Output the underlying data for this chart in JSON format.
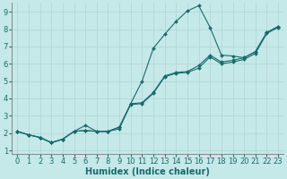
{
  "xlabel": "Humidex (Indice chaleur)",
  "background_color": "#c5e8e8",
  "grid_color": "#afd4d4",
  "line_color": "#1a6b6b",
  "xlim": [
    -0.5,
    23.5
  ],
  "ylim": [
    0.8,
    9.5
  ],
  "xticks": [
    0,
    1,
    2,
    3,
    4,
    5,
    6,
    7,
    8,
    9,
    10,
    11,
    12,
    13,
    14,
    15,
    16,
    17,
    18,
    19,
    20,
    21,
    22,
    23
  ],
  "yticks": [
    1,
    2,
    3,
    4,
    5,
    6,
    7,
    8,
    9
  ],
  "line1_x": [
    0,
    1,
    2,
    3,
    4,
    5,
    6,
    7,
    8,
    9,
    10,
    11,
    12,
    13,
    14,
    15,
    16,
    17,
    18,
    19,
    20,
    21,
    22,
    23
  ],
  "line1_y": [
    2.1,
    1.9,
    1.75,
    1.45,
    1.65,
    2.1,
    2.15,
    2.1,
    2.1,
    2.25,
    3.7,
    3.75,
    4.35,
    5.3,
    5.5,
    5.55,
    5.9,
    6.5,
    6.1,
    6.2,
    6.35,
    6.7,
    7.8,
    8.15
  ],
  "line2_x": [
    0,
    1,
    2,
    3,
    4,
    5,
    6,
    7,
    8,
    9,
    10,
    11,
    12,
    13,
    14,
    15,
    16,
    17,
    18,
    19,
    20,
    21,
    22,
    23
  ],
  "line2_y": [
    2.1,
    1.9,
    1.75,
    1.45,
    1.65,
    2.1,
    2.45,
    2.1,
    2.1,
    2.35,
    3.7,
    5.0,
    6.9,
    7.7,
    8.45,
    9.05,
    9.35,
    8.1,
    6.5,
    6.45,
    6.35,
    6.7,
    7.8,
    8.15
  ],
  "line3_x": [
    0,
    1,
    2,
    3,
    4,
    5,
    6,
    7,
    8,
    9,
    10,
    11,
    12,
    13,
    14,
    15,
    16,
    17,
    18,
    19,
    20,
    21,
    22,
    23
  ],
  "line3_y": [
    2.1,
    1.9,
    1.75,
    1.45,
    1.65,
    2.1,
    2.15,
    2.1,
    2.1,
    2.35,
    3.65,
    3.7,
    4.3,
    5.25,
    5.45,
    5.5,
    5.75,
    6.4,
    6.0,
    6.1,
    6.25,
    6.6,
    7.75,
    8.1
  ],
  "xlabel_fontsize": 7,
  "tick_fontsize": 6
}
